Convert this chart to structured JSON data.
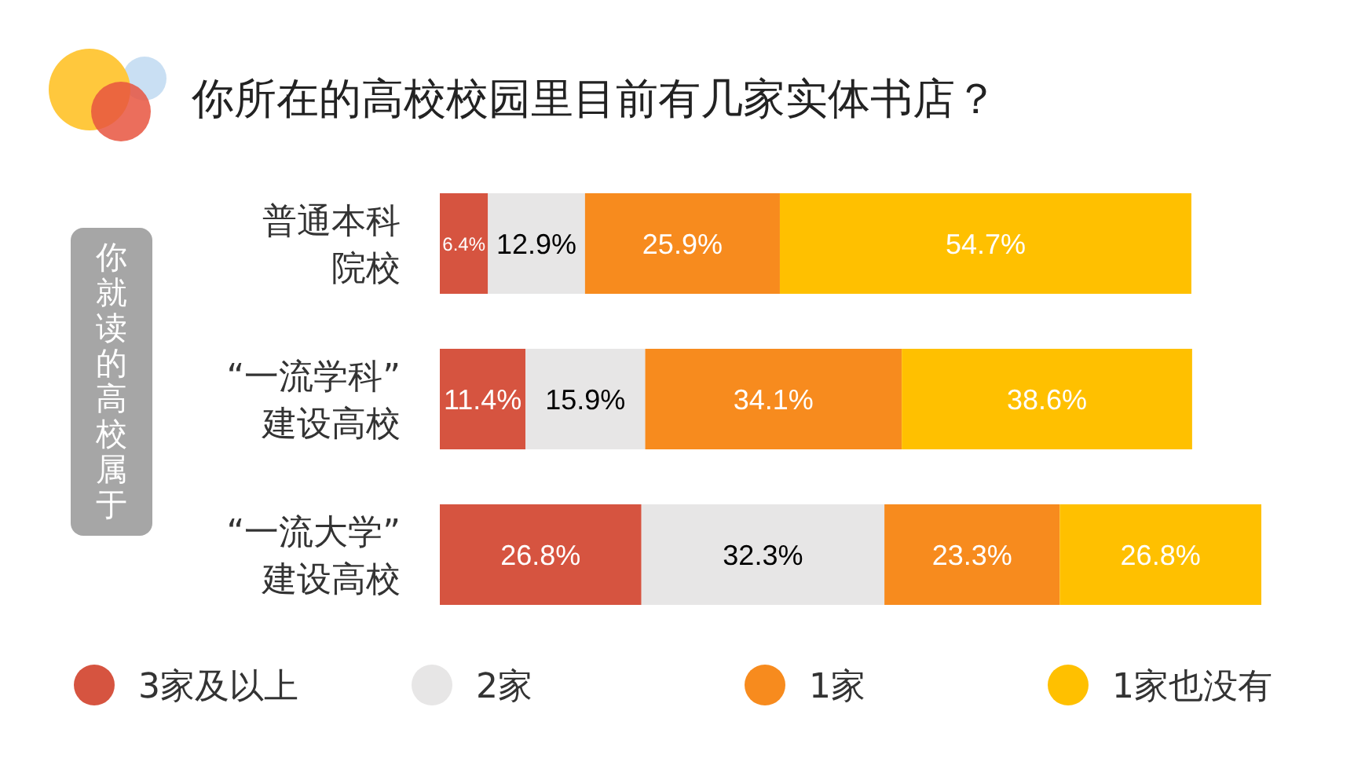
{
  "chart_data": {
    "type": "bar",
    "orientation": "horizontal",
    "stacked": true,
    "legend": "bottom",
    "title": "你所在的高校校园里目前有几家实体书店？",
    "ylabel": "你就读的高校属于",
    "categories": [
      "普通本科院校",
      "“一流学科”建设高校",
      "“一流大学”建设高校"
    ],
    "series": [
      {
        "name": "3家及以上",
        "color": "#d65440",
        "values": [
          6.4,
          11.4,
          26.8
        ],
        "value_labels": [
          "6.4%",
          "11.4%",
          "26.8%"
        ]
      },
      {
        "name": "2家",
        "color": "#e7e6e6",
        "values": [
          12.9,
          15.9,
          32.3
        ],
        "value_labels": [
          "12.9%",
          "15.9%",
          "32.3%"
        ]
      },
      {
        "name": "1家",
        "color": "#f78b1e",
        "values": [
          25.9,
          34.1,
          23.3
        ],
        "value_labels": [
          "25.9%",
          "34.1%",
          "23.3%"
        ]
      },
      {
        "name": "1家也没有",
        "color": "#ffc000",
        "values": [
          54.7,
          38.6,
          26.8
        ],
        "value_labels": [
          "54.7%",
          "38.6%",
          "26.8%"
        ]
      }
    ]
  }
}
